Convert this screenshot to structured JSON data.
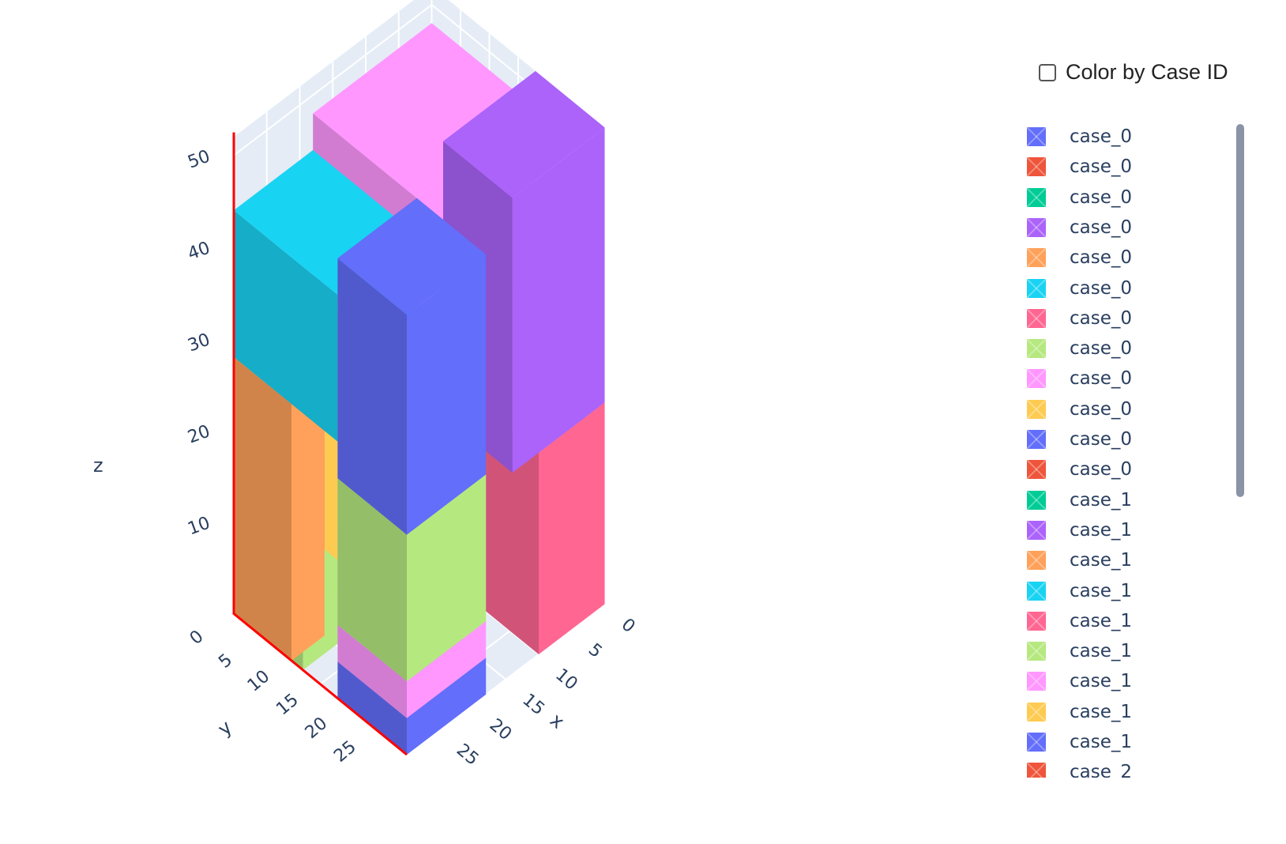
{
  "toggle": {
    "label": "Color by Case ID",
    "checked": false
  },
  "legend": {
    "items": [
      {
        "label": "case_0",
        "color": "#636efa"
      },
      {
        "label": "case_0",
        "color": "#ef553b"
      },
      {
        "label": "case_0",
        "color": "#00cc96"
      },
      {
        "label": "case_0",
        "color": "#ab63fa"
      },
      {
        "label": "case_0",
        "color": "#ffa15a"
      },
      {
        "label": "case_0",
        "color": "#19d3f3"
      },
      {
        "label": "case_0",
        "color": "#ff6692"
      },
      {
        "label": "case_0",
        "color": "#b6e880"
      },
      {
        "label": "case_0",
        "color": "#ff97ff"
      },
      {
        "label": "case_0",
        "color": "#fecb52"
      },
      {
        "label": "case_0",
        "color": "#636efa"
      },
      {
        "label": "case_0",
        "color": "#ef553b"
      },
      {
        "label": "case_1",
        "color": "#00cc96"
      },
      {
        "label": "case_1",
        "color": "#ab63fa"
      },
      {
        "label": "case_1",
        "color": "#ffa15a"
      },
      {
        "label": "case_1",
        "color": "#19d3f3"
      },
      {
        "label": "case_1",
        "color": "#ff6692"
      },
      {
        "label": "case_1",
        "color": "#b6e880"
      },
      {
        "label": "case_1",
        "color": "#ff97ff"
      },
      {
        "label": "case_1",
        "color": "#fecb52"
      },
      {
        "label": "case_1",
        "color": "#636efa"
      },
      {
        "label": "case_2",
        "color": "#ef553b"
      }
    ]
  },
  "chart_data": {
    "type": "3d-box-packing",
    "axes": {
      "x": {
        "title": "x",
        "ticks": [
          "0",
          "5",
          "10",
          "15",
          "20",
          "25"
        ]
      },
      "y": {
        "title": "y",
        "ticks": [
          "0",
          "5",
          "10",
          "15",
          "20",
          "25"
        ]
      },
      "z": {
        "title": "z",
        "ticks": [
          "10",
          "20",
          "30",
          "40",
          "50"
        ]
      }
    },
    "boxes": [
      {
        "color": "#ef553b",
        "x": [
          26,
          30
        ],
        "y": [
          12,
          22
        ],
        "z": [
          0,
          20
        ]
      },
      {
        "color": "#00cc96",
        "x": [
          26,
          30
        ],
        "y": [
          22,
          30
        ],
        "z": [
          0,
          8
        ]
      },
      {
        "color": "#ffa15a",
        "x": [
          25,
          30
        ],
        "y": [
          12,
          30
        ],
        "z": [
          20,
          30
        ]
      },
      {
        "color": "#ab63fa",
        "x": [
          0,
          12
        ],
        "y": [
          25,
          30
        ],
        "z": [
          0,
          12
        ]
      },
      {
        "color": "#ab63fa",
        "x": [
          12,
          20
        ],
        "y": [
          12,
          20
        ],
        "z": [
          0,
          12
        ]
      },
      {
        "color": "#fecb52",
        "x": [
          22,
          26
        ],
        "y": [
          15,
          22
        ],
        "z": [
          0,
          8
        ]
      },
      {
        "color": "#ef553b",
        "x": [
          0,
          3
        ],
        "y": [
          20,
          30
        ],
        "z": [
          0,
          3
        ]
      },
      {
        "color": "#b6e880",
        "x": [
          0,
          8
        ],
        "y": [
          18,
          24
        ],
        "z": [
          0,
          6
        ]
      },
      {
        "color": "#ff97ff",
        "x": [
          3,
          8
        ],
        "y": [
          24,
          30
        ],
        "z": [
          0,
          6
        ]
      },
      {
        "color": "#ffa15a",
        "x": [
          0,
          5
        ],
        "y": [
          20,
          30
        ],
        "z": [
          0,
          28
        ]
      },
      {
        "color": "#fecb52",
        "x": [
          5,
          12
        ],
        "y": [
          20,
          30
        ],
        "z": [
          0,
          28
        ]
      },
      {
        "color": "#ff6692",
        "x": [
          20,
          30
        ],
        "y": [
          0,
          12
        ],
        "z": [
          0,
          22
        ]
      },
      {
        "color": "#ab63fa",
        "x": [
          16,
          30
        ],
        "y": [
          0,
          12
        ],
        "z": [
          22,
          52
        ]
      },
      {
        "color": "#19d3f3",
        "x": [
          0,
          12
        ],
        "y": [
          12,
          30
        ],
        "z": [
          28,
          44
        ]
      },
      {
        "color": "#ff97ff",
        "x": [
          12,
          30
        ],
        "y": [
          12,
          30
        ],
        "z": [
          30,
          48
        ]
      },
      {
        "color": "#636efa",
        "x": [
          0,
          12
        ],
        "y": [
          0,
          12
        ],
        "z": [
          0,
          4
        ]
      },
      {
        "color": "#ff97ff",
        "x": [
          0,
          12
        ],
        "y": [
          0,
          12
        ],
        "z": [
          4,
          8
        ]
      },
      {
        "color": "#b6e880",
        "x": [
          0,
          12
        ],
        "y": [
          0,
          12
        ],
        "z": [
          8,
          24
        ]
      },
      {
        "color": "#636efa",
        "x": [
          0,
          12
        ],
        "y": [
          0,
          12
        ],
        "z": [
          24,
          48
        ]
      }
    ]
  }
}
